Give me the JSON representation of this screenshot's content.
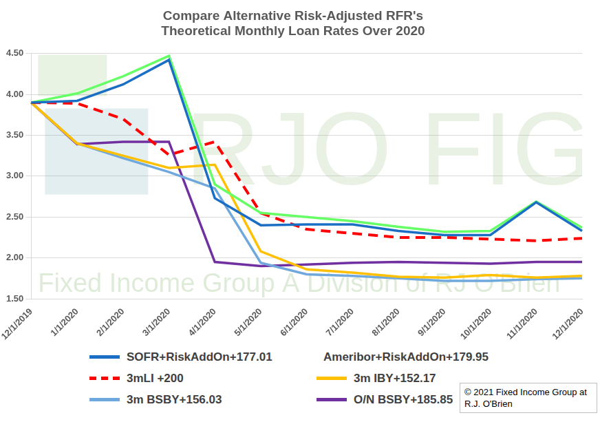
{
  "chart_data": {
    "type": "line",
    "title": [
      "Compare Alternative Risk-Adjusted RFR's",
      "Theoretical Monthly Loan Rates Over 2020"
    ],
    "categories": [
      "12/1/2019",
      "1/1/2020",
      "2/1/2020",
      "3/1/2020",
      "4/1/2020",
      "5/1/2020",
      "6/1/2020",
      "7/1/2020",
      "8/1/2020",
      "9/1/2020",
      "10/1/2020",
      "11/1/2020",
      "12/1/2020"
    ],
    "series": [
      {
        "name": "SOFR+RiskAddOn+177.01",
        "color": "#1a6fc4",
        "line_style": "solid",
        "values": [
          3.9,
          3.92,
          4.12,
          4.42,
          2.73,
          2.4,
          2.41,
          2.41,
          2.33,
          2.28,
          2.28,
          2.68,
          2.33
        ]
      },
      {
        "name": "Ameribor+RiskAddOn+179.95",
        "color": "#66ff66",
        "line_style": "solid",
        "values": [
          3.9,
          4.01,
          4.22,
          4.47,
          2.9,
          2.55,
          2.5,
          2.45,
          2.38,
          2.32,
          2.33,
          2.69,
          2.37
        ]
      },
      {
        "name": "3mLI +200",
        "color": "#ff0000",
        "line_style": "dashed",
        "values": [
          3.9,
          3.89,
          3.7,
          3.26,
          3.42,
          2.55,
          2.35,
          2.3,
          2.25,
          2.25,
          2.23,
          2.21,
          2.24
        ]
      },
      {
        "name": "3m IBY+152.17",
        "color": "#ffc000",
        "line_style": "solid",
        "values": [
          3.9,
          3.4,
          3.25,
          3.1,
          3.14,
          2.08,
          1.86,
          1.82,
          1.77,
          1.76,
          1.79,
          1.76,
          1.78
        ]
      },
      {
        "name": "3m BSBY+156.03",
        "color": "#6fa8dc",
        "line_style": "solid",
        "values": [
          3.9,
          3.4,
          3.22,
          3.05,
          2.85,
          1.94,
          1.8,
          1.78,
          1.75,
          1.72,
          1.72,
          1.74,
          1.75
        ]
      },
      {
        "name": "O/N BSBY+185.85",
        "color": "#7030a0",
        "line_style": "solid",
        "values": [
          3.9,
          3.39,
          3.42,
          3.42,
          1.95,
          1.9,
          1.92,
          1.94,
          1.95,
          1.94,
          1.93,
          1.95,
          1.95
        ]
      }
    ],
    "ylim": [
      1.5,
      4.5
    ],
    "yticks": [
      {
        "value": 1.5,
        "label": "1.50"
      },
      {
        "value": 2,
        "label": "2.00"
      },
      {
        "value": 2.5,
        "label": "2.50"
      },
      {
        "value": 3,
        "label": "3.00"
      },
      {
        "value": 3.5,
        "label": "3.50"
      },
      {
        "value": 4,
        "label": "4.00"
      },
      {
        "value": 4.5,
        "label": "4.50"
      }
    ],
    "grid": true,
    "legend": "bottom",
    "annotations": [
      "RJO FIG",
      "Fixed Income Group A Division of RJ O'Brien",
      "© 2021 Fixed Income Group at R.J. O'Brien"
    ]
  }
}
